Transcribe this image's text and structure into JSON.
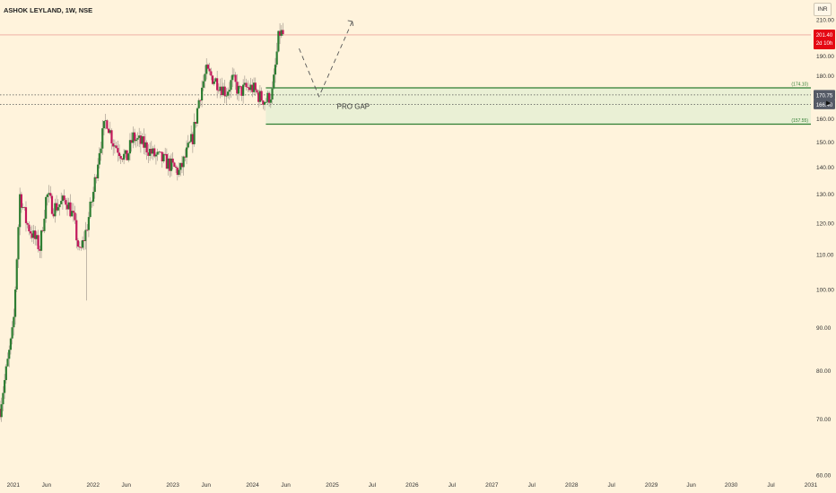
{
  "header": {
    "symbol_title": "ASHOK LEYLAND, 1W, NSE",
    "currency_label": "INR"
  },
  "colors": {
    "background": "#fff3dc",
    "up_candle": "#2e7d32",
    "down_candle": "#c2185b",
    "zone_fill": "#e6efd3",
    "zone_border": "#2e7d32",
    "price_badge_current": "#e50914",
    "price_badge_levels": "#555a66"
  },
  "chart_data": {
    "type": "candlestick",
    "title": "ASHOK LEYLAND, 1W, NSE",
    "y_axis": {
      "min": 60,
      "max": 210,
      "scale": "log",
      "ticks": [
        60,
        70,
        80,
        90,
        100,
        110,
        120,
        130,
        140,
        150,
        160,
        170,
        180,
        190,
        200,
        210
      ],
      "tick_labels": [
        "60.00",
        "70.00",
        "80.00",
        "90.00",
        "100.00",
        "110.00",
        "120.00",
        "130.00",
        "140.00",
        "150.00",
        "160.00",
        "170.00",
        "180.00",
        "190.00",
        "200.00",
        "210.00"
      ],
      "position": "right"
    },
    "x_axis": {
      "start": "2020-11",
      "end": "2031-01",
      "ticks": [
        "2021-01",
        "2021-06",
        "2022-01",
        "2022-06",
        "2023-01",
        "2023-06",
        "2024-01",
        "2024-06",
        "2025-01",
        "2025-07",
        "2026-01",
        "2026-07",
        "2027-01",
        "2027-07",
        "2028-01",
        "2028-07",
        "2029-01",
        "2029-07",
        "2030-01",
        "2030-07",
        "2031-01"
      ],
      "tick_labels": [
        "2021",
        "Jun",
        "2022",
        "Jun",
        "2023",
        "Jun",
        "2024",
        "Jun",
        "2025",
        "Jul",
        "2026",
        "Jul",
        "2027",
        "Jul",
        "2028",
        "Jul",
        "2029",
        "Jun",
        "2030",
        "Jul",
        "2031"
      ]
    },
    "price_path": [
      [
        "2020-11",
        72
      ],
      [
        "2021-01",
        90
      ],
      [
        "2021-02",
        130
      ],
      [
        "2021-03",
        120
      ],
      [
        "2021-05",
        112
      ],
      [
        "2021-06",
        130
      ],
      [
        "2021-07",
        125
      ],
      [
        "2021-09",
        128
      ],
      [
        "2021-10",
        122
      ],
      [
        "2021-11",
        110
      ],
      [
        "2021-12",
        118
      ],
      [
        "2022-01",
        130
      ],
      [
        "2022-02",
        148
      ],
      [
        "2022-03",
        160
      ],
      [
        "2022-04",
        150
      ],
      [
        "2022-06",
        143
      ],
      [
        "2022-07",
        152
      ],
      [
        "2022-09",
        148
      ],
      [
        "2022-10",
        145
      ],
      [
        "2022-12",
        142
      ],
      [
        "2023-02",
        138
      ],
      [
        "2023-04",
        152
      ],
      [
        "2023-05",
        170
      ],
      [
        "2023-06",
        182
      ],
      [
        "2023-08",
        176
      ],
      [
        "2023-09",
        172
      ],
      [
        "2023-10",
        178
      ],
      [
        "2023-11",
        172
      ],
      [
        "2023-12",
        174
      ],
      [
        "2024-01",
        174
      ],
      [
        "2024-02",
        170
      ],
      [
        "2024-03",
        168
      ],
      [
        "2024-04",
        172
      ],
      [
        "2024-05",
        203
      ],
      [
        "2024-05-20",
        201.4
      ]
    ],
    "wick_lows": [
      [
        "2021-12",
        97
      ]
    ],
    "current_price": {
      "value": 201.4,
      "label": "201.40",
      "countdown": "2d 10h"
    },
    "price_levels": [
      {
        "value": 170.75,
        "label": "170.75",
        "style": "dotted"
      },
      {
        "value": 166.4,
        "label": "166.40",
        "style": "dotted"
      }
    ],
    "zones": [
      {
        "name": "PRO GAP",
        "label": "PRO GAP",
        "top": 174.1,
        "bottom": 157.55,
        "start": "2024-03",
        "top_label": "(174.10)",
        "bottom_label": "(157.55)"
      }
    ],
    "projection": [
      [
        "2024-08",
        194
      ],
      [
        "2024-11",
        170
      ],
      [
        "2025-04",
        209
      ]
    ]
  }
}
